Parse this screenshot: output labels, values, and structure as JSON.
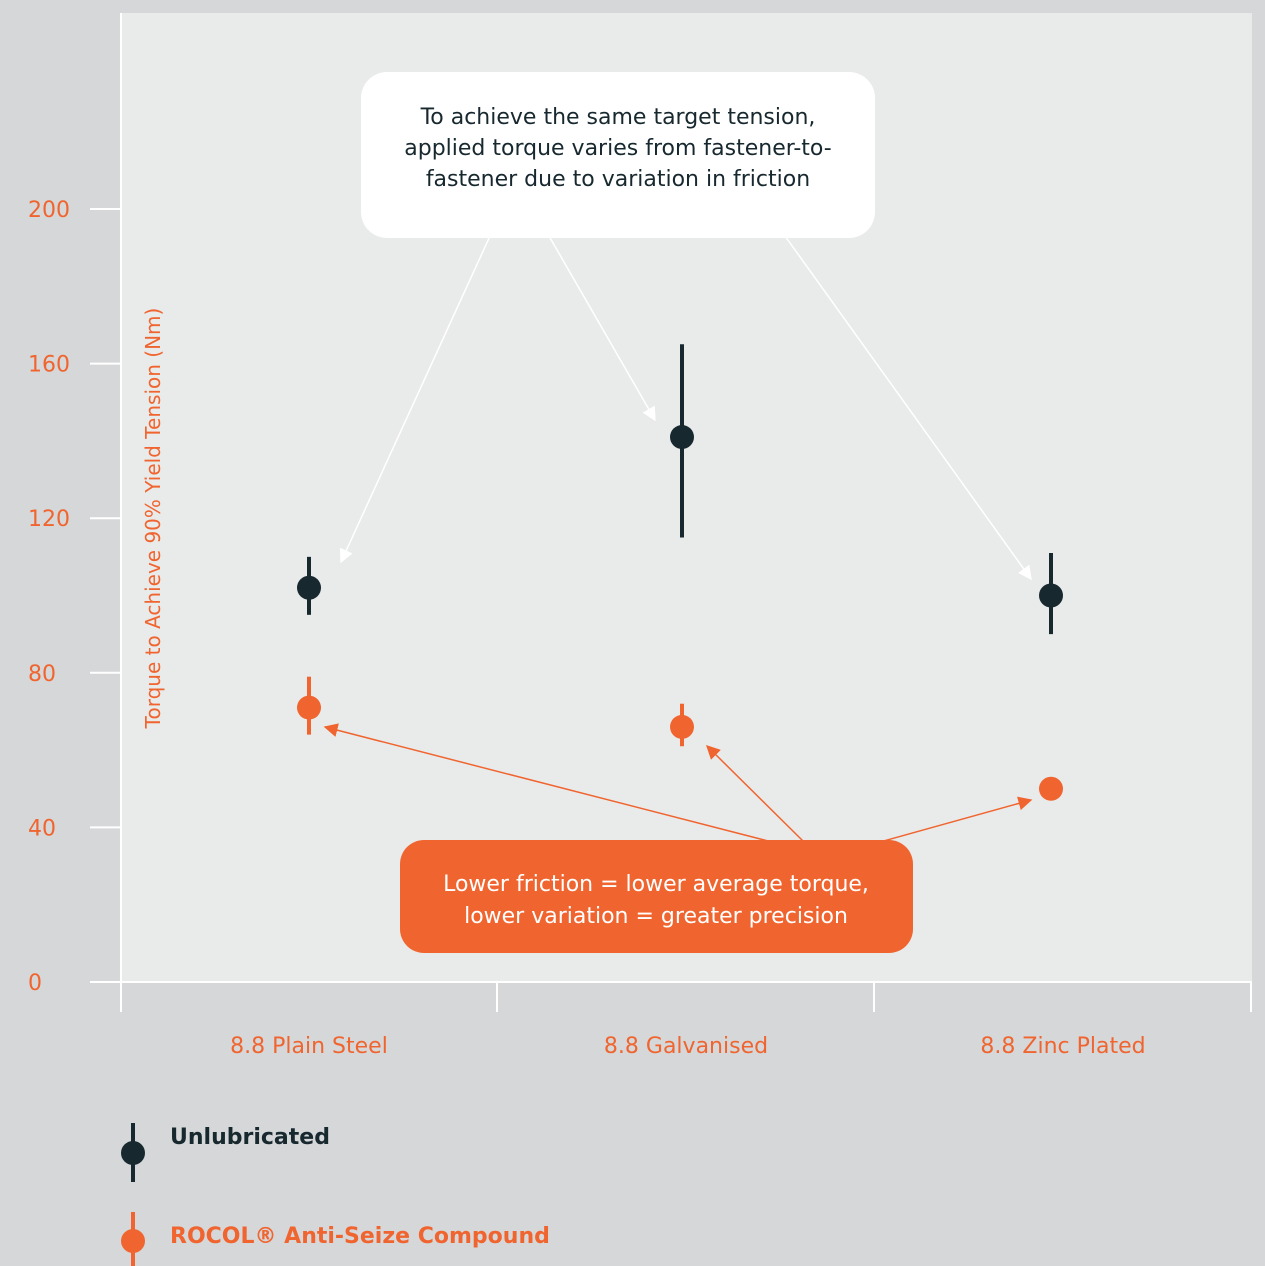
{
  "colors": {
    "page_bg": "#d6d7d9",
    "plot_bg": "#e9eaea",
    "axis": "#ffffff",
    "unlubricated": "#17282f",
    "rocol": "#f0652f"
  },
  "chart_data": {
    "type": "scatter",
    "xlabel": "",
    "ylabel": "Torque to Achieve 90% Yield Tension (Nm)",
    "ylim": [
      0,
      250
    ],
    "yticks": [
      0,
      40,
      80,
      120,
      160,
      200
    ],
    "categories": [
      "8.8 Plain Steel",
      "8.8 Galvanised",
      "8.8 Zinc Plated"
    ],
    "grid": false,
    "legend_position": "bottom-left",
    "series": [
      {
        "name": "Unlubricated",
        "color": "#17282f",
        "mean": [
          102,
          141,
          100
        ],
        "low": [
          95,
          115,
          90
        ],
        "high": [
          110,
          165,
          111
        ]
      },
      {
        "name": "ROCOL® Anti-Seize Compound",
        "color": "#f0652f",
        "mean": [
          71,
          66,
          50
        ],
        "low": [
          64,
          61,
          50
        ],
        "high": [
          79,
          72,
          50
        ]
      }
    ],
    "annotations": [
      {
        "line1": "To achieve the same target tension,",
        "line2": "applied torque varies from fastener-to-",
        "line3": "fastener due to variation in friction"
      },
      {
        "line1": "Lower friction = lower average torque,",
        "line2": "lower variation = greater precision"
      }
    ]
  }
}
